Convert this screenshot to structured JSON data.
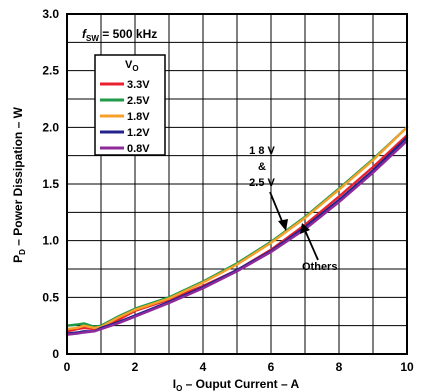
{
  "chart_data": {
    "type": "line",
    "xlabel": {
      "main": "I",
      "sub": "O",
      "rest": " – Ouput Current  – A"
    },
    "ylabel": {
      "main": "P",
      "sub": "D",
      "rest": " – Power Dissipation – W"
    },
    "xlim": [
      0,
      10
    ],
    "ylim": [
      0,
      3.0
    ],
    "x_ticks": [
      0,
      2,
      4,
      6,
      8,
      10
    ],
    "x_tick_labels": [
      "0",
      "2",
      "4",
      "6",
      "8",
      "10"
    ],
    "y_ticks": [
      0,
      0.5,
      1.0,
      1.5,
      2.0,
      2.5,
      3.0
    ],
    "y_tick_labels": [
      "0",
      "0.5",
      "1.0",
      "1.5",
      "2.0",
      "2.5",
      "3.0"
    ],
    "grid": true,
    "annotation_fsw": {
      "italic": "f",
      "sub": "SW",
      "rest": " = 500 kHz"
    },
    "legend": {
      "title_main": "V",
      "title_sub": "O",
      "placement": "top-left"
    },
    "annotations": [
      {
        "lines": [
          "1 8 V",
          "&",
          "2.5 V"
        ],
        "arrow_to": [
          6.35,
          1.07
        ]
      },
      {
        "lines": [
          "Others"
        ],
        "arrow_to": [
          7.05,
          1.06
        ]
      }
    ],
    "series": [
      {
        "name": "3.3V",
        "color": "#e8212e",
        "x": [
          0,
          0.3,
          0.5,
          0.8,
          1,
          1.5,
          2,
          3,
          4,
          5,
          6,
          7,
          8,
          9,
          10
        ],
        "y": [
          0.2,
          0.22,
          0.23,
          0.22,
          0.24,
          0.3,
          0.38,
          0.48,
          0.6,
          0.74,
          0.92,
          1.14,
          1.39,
          1.65,
          1.93
        ]
      },
      {
        "name": "2.5V",
        "color": "#1f9a48",
        "x": [
          0,
          0.3,
          0.5,
          0.8,
          1,
          1.5,
          2,
          3,
          4,
          5,
          6,
          7,
          8,
          9,
          10
        ],
        "y": [
          0.25,
          0.26,
          0.27,
          0.24,
          0.25,
          0.33,
          0.4,
          0.5,
          0.64,
          0.8,
          0.99,
          1.21,
          1.46,
          1.72,
          2.0
        ]
      },
      {
        "name": "1.8V",
        "color": "#f5a02a",
        "x": [
          0,
          0.3,
          0.5,
          0.8,
          1,
          1.5,
          2,
          3,
          4,
          5,
          6,
          7,
          8,
          9,
          10
        ],
        "y": [
          0.22,
          0.23,
          0.25,
          0.23,
          0.24,
          0.32,
          0.39,
          0.49,
          0.63,
          0.79,
          0.98,
          1.2,
          1.45,
          1.71,
          2.0
        ]
      },
      {
        "name": "1.2V",
        "color": "#23238e",
        "x": [
          0,
          0.3,
          0.5,
          0.8,
          1,
          1.5,
          2,
          3,
          4,
          5,
          6,
          7,
          8,
          9,
          10
        ],
        "y": [
          0.18,
          0.19,
          0.2,
          0.2,
          0.23,
          0.28,
          0.34,
          0.46,
          0.59,
          0.74,
          0.91,
          1.12,
          1.36,
          1.62,
          1.91
        ]
      },
      {
        "name": "0.8V",
        "color": "#8e2a9a",
        "x": [
          0,
          0.3,
          0.5,
          0.8,
          1,
          1.5,
          2,
          3,
          4,
          5,
          6,
          7,
          8,
          9,
          10
        ],
        "y": [
          0.17,
          0.18,
          0.19,
          0.2,
          0.22,
          0.27,
          0.33,
          0.45,
          0.58,
          0.73,
          0.9,
          1.1,
          1.34,
          1.6,
          1.88
        ]
      }
    ]
  }
}
